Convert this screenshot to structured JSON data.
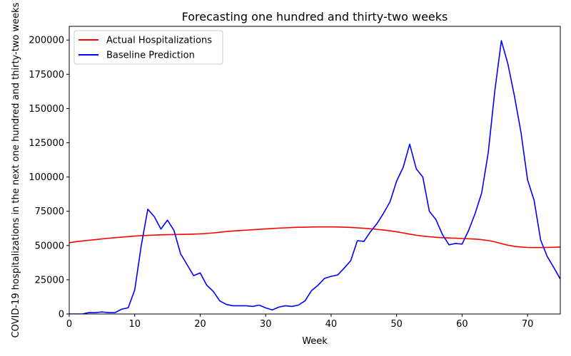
{
  "chart_data": {
    "type": "line",
    "title": "Forecasting one hundred and thirty-two weeks",
    "xlabel": "Week",
    "ylabel": "COVID-19 hospitalizations in the next one hundred and thirty-two weeks",
    "xlim": [
      0,
      75
    ],
    "ylim": [
      0,
      210000
    ],
    "xticks": [
      0,
      10,
      20,
      30,
      40,
      50,
      60,
      70
    ],
    "yticks": [
      0,
      25000,
      50000,
      75000,
      100000,
      125000,
      150000,
      175000,
      200000
    ],
    "xtick_labels": [
      "0",
      "10",
      "20",
      "30",
      "40",
      "50",
      "60",
      "70"
    ],
    "ytick_labels": [
      "0",
      "25000",
      "50000",
      "75000",
      "100000",
      "125000",
      "150000",
      "175000",
      "200000"
    ],
    "grid": false,
    "legend_position": "upper-left",
    "x": [
      0,
      1,
      2,
      3,
      4,
      5,
      6,
      7,
      8,
      9,
      10,
      11,
      12,
      13,
      14,
      15,
      16,
      17,
      18,
      19,
      20,
      21,
      22,
      23,
      24,
      25,
      26,
      27,
      28,
      29,
      30,
      31,
      32,
      33,
      34,
      35,
      36,
      37,
      38,
      39,
      40,
      41,
      42,
      43,
      44,
      45,
      46,
      47,
      48,
      49,
      50,
      51,
      52,
      53,
      54,
      55,
      56,
      57,
      58,
      59,
      60,
      61,
      62,
      63,
      64,
      65,
      66,
      67,
      68,
      69,
      70,
      71,
      72,
      73,
      74,
      75
    ],
    "series": [
      {
        "name": "Actual Hospitalizations",
        "color": "#ff0000",
        "values": [
          52000,
          52800,
          53300,
          53800,
          54300,
          54800,
          55300,
          55700,
          56100,
          56500,
          56900,
          57200,
          57400,
          57600,
          57800,
          57900,
          58000,
          58100,
          58200,
          58300,
          58500,
          58800,
          59200,
          59700,
          60200,
          60600,
          60900,
          61200,
          61500,
          61800,
          62100,
          62400,
          62700,
          62900,
          63100,
          63300,
          63400,
          63500,
          63600,
          63600,
          63600,
          63500,
          63400,
          63200,
          62900,
          62600,
          62200,
          61800,
          61300,
          60700,
          60000,
          59200,
          58300,
          57500,
          56900,
          56400,
          56000,
          55700,
          55500,
          55300,
          55100,
          54900,
          54700,
          54300,
          53600,
          52700,
          51400,
          50200,
          49400,
          48900,
          48600,
          48500,
          48500,
          48600,
          48700,
          48900
        ]
      },
      {
        "name": "Baseline Prediction",
        "color": "#0000ff",
        "values": [
          0,
          0,
          0,
          1000,
          1000,
          1500,
          1000,
          1000,
          3500,
          4500,
          17500,
          50000,
          76500,
          71000,
          62000,
          68500,
          61000,
          44000,
          36000,
          28000,
          30000,
          21000,
          16500,
          9500,
          7000,
          6000,
          6000,
          6000,
          5500,
          6500,
          4500,
          3000,
          5000,
          6000,
          5500,
          6500,
          9500,
          17000,
          21000,
          26000,
          27500,
          28500,
          33500,
          39000,
          53500,
          53000,
          60000,
          66000,
          73500,
          82000,
          97000,
          107000,
          124000,
          106000,
          100000,
          75000,
          69000,
          58000,
          50500,
          51500,
          51000,
          61000,
          73500,
          88500,
          118000,
          163000,
          199500,
          182500,
          159000,
          132500,
          98000,
          83000,
          54000,
          42000,
          34000,
          25500
        ]
      }
    ]
  }
}
